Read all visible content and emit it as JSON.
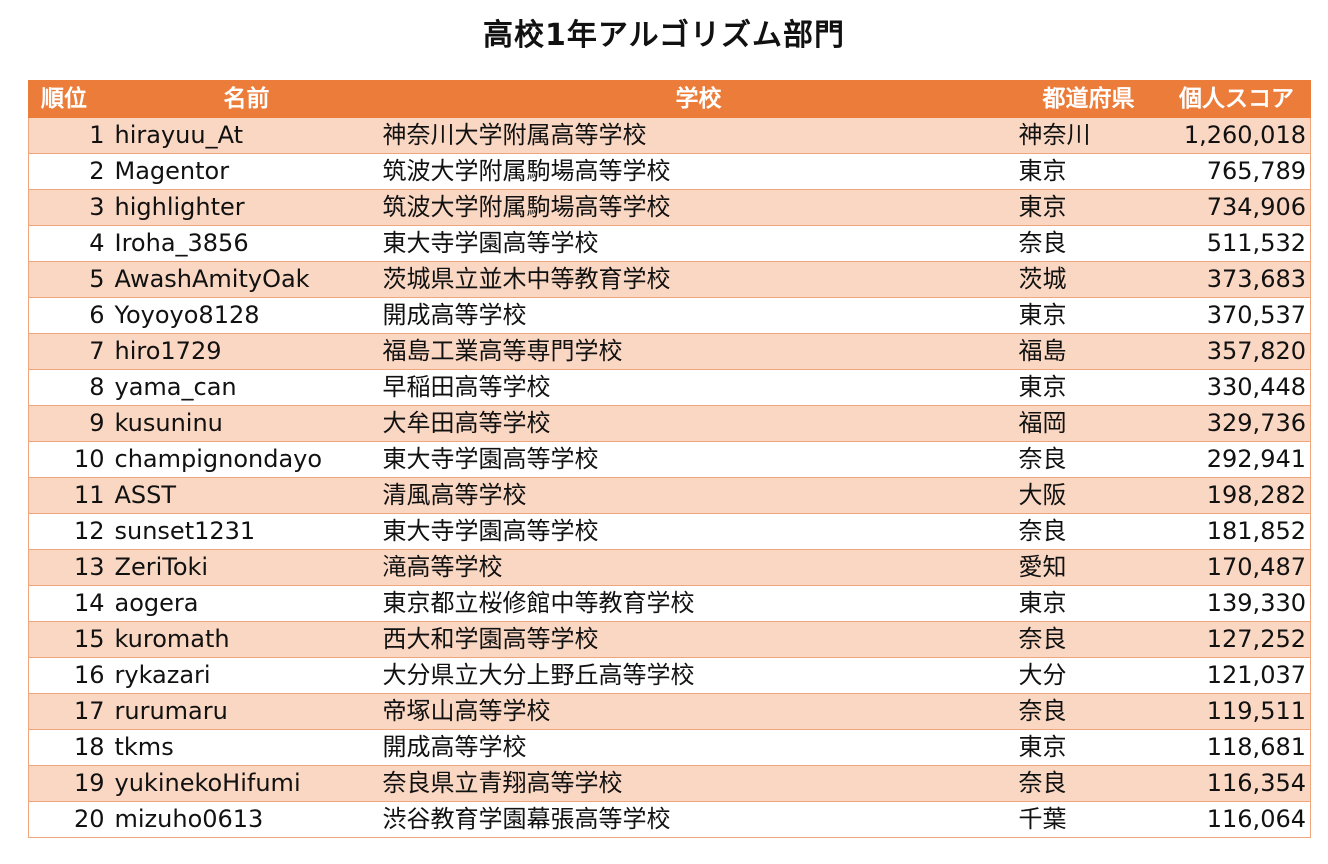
{
  "title": "高校1年アルゴリズム部門",
  "accent_color": "#ec7c3a",
  "stripe_color": "#fad7c3",
  "headers": {
    "rank": "順位",
    "name": "名前",
    "school": "学校",
    "prefecture": "都道府県",
    "score": "個人スコア"
  },
  "rows": [
    {
      "rank": "1",
      "name": "hirayuu_At",
      "school": "神奈川大学附属高等学校",
      "prefecture": "神奈川",
      "score": "1,260,018"
    },
    {
      "rank": "2",
      "name": "Magentor",
      "school": "筑波大学附属駒場高等学校",
      "prefecture": "東京",
      "score": "765,789"
    },
    {
      "rank": "3",
      "name": "highlighter",
      "school": "筑波大学附属駒場高等学校",
      "prefecture": "東京",
      "score": "734,906"
    },
    {
      "rank": "4",
      "name": "Iroha_3856",
      "school": "東大寺学園高等学校",
      "prefecture": "奈良",
      "score": "511,532"
    },
    {
      "rank": "5",
      "name": "AwashAmityOak",
      "school": "茨城県立並木中等教育学校",
      "prefecture": "茨城",
      "score": "373,683"
    },
    {
      "rank": "6",
      "name": "Yoyoyo8128",
      "school": "開成高等学校",
      "prefecture": "東京",
      "score": "370,537"
    },
    {
      "rank": "7",
      "name": "hiro1729",
      "school": "福島工業高等専門学校",
      "prefecture": "福島",
      "score": "357,820"
    },
    {
      "rank": "8",
      "name": "yama_can",
      "school": "早稲田高等学校",
      "prefecture": "東京",
      "score": "330,448"
    },
    {
      "rank": "9",
      "name": "kusuninu",
      "school": "大牟田高等学校",
      "prefecture": "福岡",
      "score": "329,736"
    },
    {
      "rank": "10",
      "name": "champignondayo",
      "school": "東大寺学園高等学校",
      "prefecture": "奈良",
      "score": "292,941"
    },
    {
      "rank": "11",
      "name": "ASST",
      "school": "清風高等学校",
      "prefecture": "大阪",
      "score": "198,282"
    },
    {
      "rank": "12",
      "name": "sunset1231",
      "school": "東大寺学園高等学校",
      "prefecture": "奈良",
      "score": "181,852"
    },
    {
      "rank": "13",
      "name": "ZeriToki",
      "school": "滝高等学校",
      "prefecture": "愛知",
      "score": "170,487"
    },
    {
      "rank": "14",
      "name": "aogera",
      "school": "東京都立桜修館中等教育学校",
      "prefecture": "東京",
      "score": "139,330"
    },
    {
      "rank": "15",
      "name": "kuromath",
      "school": "西大和学園高等学校",
      "prefecture": "奈良",
      "score": "127,252"
    },
    {
      "rank": "16",
      "name": "rykazari",
      "school": "大分県立大分上野丘高等学校",
      "prefecture": "大分",
      "score": "121,037"
    },
    {
      "rank": "17",
      "name": "rurumaru",
      "school": "帝塚山高等学校",
      "prefecture": "奈良",
      "score": "119,511"
    },
    {
      "rank": "18",
      "name": "tkms",
      "school": "開成高等学校",
      "prefecture": "東京",
      "score": "118,681"
    },
    {
      "rank": "19",
      "name": "yukinekoHifumi",
      "school": "奈良県立青翔高等学校",
      "prefecture": "奈良",
      "score": "116,354"
    },
    {
      "rank": "20",
      "name": "mizuho0613",
      "school": "渋谷教育学園幕張高等学校",
      "prefecture": "千葉",
      "score": "116,064"
    }
  ]
}
